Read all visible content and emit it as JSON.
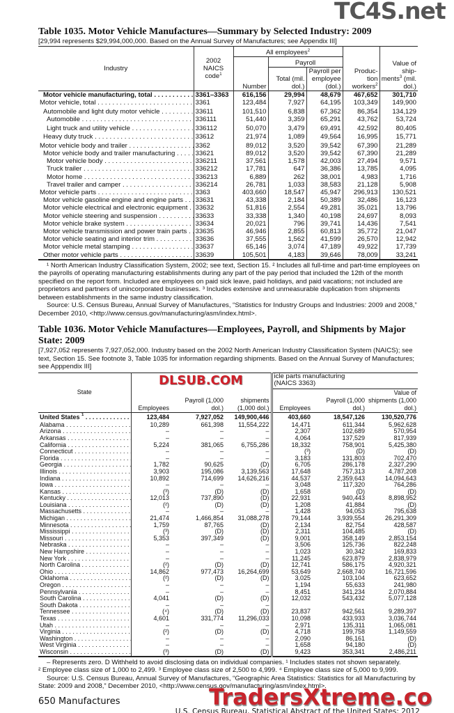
{
  "watermarks": {
    "top": "TC4S.net",
    "middle": "DLSUB.COM",
    "bottom": "TradersXtreme.co"
  },
  "t1035": {
    "title": "Table 1035. Motor Vehicle Manufactures—Summary by Selected Industry: 2009",
    "headnote": "[29,994 represents $29,994,000,000. Based on the Annual Survey of Manufactures; see Appendix III]",
    "headers": {
      "industry": "Industry",
      "naics": "2002 NAICS code",
      "all_employees": "All employees",
      "payroll": "Payroll",
      "number": "Number",
      "total": "Total (mil. dol.)",
      "per_employee": "Payroll per employee (dol.)",
      "production": "Produc- tion workers",
      "value": "Value of ship- ments",
      "value_unit": "(mil. dol.)"
    },
    "rows": [
      {
        "label": "Motor vehicle manufacturing, total",
        "indent": 1,
        "bold": true,
        "cells": [
          "3361–3363",
          "616,156",
          "29,994",
          "48,679",
          "467,652",
          "301,710"
        ]
      },
      {
        "label": "Motor vehicle, total",
        "indent": 0,
        "cells": [
          "3361",
          "123,484",
          "7,927",
          "64,195",
          "103,349",
          "149,900"
        ]
      },
      {
        "label": "Automobile and light duty motor vehicle",
        "indent": 1,
        "gap": true,
        "cells": [
          "33611",
          "101,510",
          "6,838",
          "67,362",
          "86,354",
          "134,129"
        ]
      },
      {
        "label": "Automobile",
        "indent": 2,
        "cells": [
          "336111",
          "51,440",
          "3,359",
          "65,291",
          "43,762",
          "53,724"
        ]
      },
      {
        "label": "Light truck and utility vehicle",
        "indent": 2,
        "gap": true,
        "cells": [
          "336112",
          "50,070",
          "3,479",
          "69,491",
          "42,592",
          "80,405"
        ]
      },
      {
        "label": "Heavy duty truck",
        "indent": 1,
        "cells": [
          "33612",
          "21,974",
          "1,089",
          "49,564",
          "16,995",
          "15,771"
        ]
      },
      {
        "label": "Motor vehicle body and trailer",
        "indent": 0,
        "gap": true,
        "cells": [
          "3362",
          "89,012",
          "3,520",
          "39,542",
          "67,390",
          "21,289"
        ]
      },
      {
        "label": "Motor vehicle body and trailer manufacturing",
        "indent": 1,
        "cells": [
          "33621",
          "89,012",
          "3,520",
          "39,542",
          "67,390",
          "21,289"
        ]
      },
      {
        "label": "Motor vehicle body",
        "indent": 2,
        "cells": [
          "336211",
          "37,561",
          "1,578",
          "42,003",
          "27,494",
          "9,571"
        ]
      },
      {
        "label": "Truck trailer",
        "indent": 2,
        "cells": [
          "336212",
          "17,781",
          "647",
          "36,386",
          "13,785",
          "4,095"
        ]
      },
      {
        "label": "Motor home",
        "indent": 2,
        "cells": [
          "336213",
          "6,889",
          "262",
          "38,001",
          "4,983",
          "1,716"
        ]
      },
      {
        "label": "Travel trailer and camper",
        "indent": 2,
        "cells": [
          "336214",
          "26,781",
          "1,033",
          "38,583",
          "21,128",
          "5,908"
        ]
      },
      {
        "label": "Motor vehicle parts",
        "indent": 0,
        "cells": [
          "3363",
          "403,660",
          "18,547",
          "45,947",
          "296,913",
          "130,521"
        ]
      },
      {
        "label": "Motor vehicle gasoline engine and engine parts",
        "indent": 1,
        "cells": [
          "33631",
          "43,338",
          "2,184",
          "50,389",
          "32,486",
          "16,123"
        ]
      },
      {
        "label": "Motor vehicle electrical and electronic equipment",
        "indent": 1,
        "cells": [
          "33632",
          "51,816",
          "2,554",
          "49,281",
          "35,021",
          "13,796"
        ]
      },
      {
        "label": "Motor vehicle steering and suspension",
        "indent": 1,
        "cells": [
          "33633",
          "33,338",
          "1,340",
          "40,198",
          "24,697",
          "8,093"
        ]
      },
      {
        "label": "Motor vehicle brake system",
        "indent": 1,
        "cells": [
          "33634",
          "20,021",
          "796",
          "39,741",
          "14,436",
          "7,541"
        ]
      },
      {
        "label": "Motor vehicle transmission and power train parts",
        "indent": 1,
        "cells": [
          "33635",
          "46,946",
          "2,855",
          "60,813",
          "35,772",
          "21,047"
        ]
      },
      {
        "label": "Motor vehicle seating and interior trim",
        "indent": 1,
        "cells": [
          "33636",
          "37,555",
          "1,562",
          "41,599",
          "26,570",
          "12,942"
        ]
      },
      {
        "label": "Motor vehicle metal stamping",
        "indent": 1,
        "cells": [
          "33637",
          "65,146",
          "3,074",
          "47,189",
          "49,922",
          "17,739"
        ]
      },
      {
        "label": "Other motor vehicle parts",
        "indent": 1,
        "cells": [
          "33639",
          "105,501",
          "4,183",
          "39,646",
          "78,009",
          "33,241"
        ]
      }
    ],
    "footnotes": "¹ North American Industry Classification System, 2002; see text, Section 15. ² Includes all full-time and part-time employees on the payrolls of operating manufacturing establishments during any part of the pay period that included the 12th of the month specified on the report form. Included are employees on paid sick leave, paid holidays, and paid vacations; not included are proprietors and partners of unincorporated businesses. ³ Includes extensive and unmeasurable duplication from shipments between establishments in the same industry classification.",
    "source": "Source: U.S. Census Bureau, Annual Survey of Manufactures, “Statistics for Industry Groups and Industries: 2009 and 2008,” December 2010, <http://www.census.gov/manufacturing/asm/index.html>."
  },
  "t1036": {
    "title": "Table 1036. Motor Vehicle Manufactures—Employees, Payroll, and Shipments by Major State: 2009",
    "headnote": "[7,927,052 represents 7,927,052,000. Industry based on the 2002 North American Industry Classification System (NAICS); see text, Section 15. See footnote 3, Table 1035 for information regarding shipments. Based on the Annual Survey of Manufactures; see Apppendix III]",
    "headers": {
      "state": "State",
      "group2_a": "icle parts manufacturing",
      "group2_b": "(NAICS 3363)",
      "employees": "Employees",
      "payroll": "Payroll (1,000 dol.)",
      "value": "Value of shipments (1,000 dol.)",
      "value_partial": "shipments (1,000 dol.)"
    },
    "us_row": {
      "label": "United States",
      "sup": "1",
      "cells": [
        "123,484",
        "7,927,052",
        "149,900,446",
        "403,660",
        "18,547,126",
        "130,520,776"
      ]
    },
    "rows": [
      [
        "Alabama",
        "10,289",
        "661,398",
        "11,554,222",
        "14,471",
        "611,344",
        "5,962,628"
      ],
      [
        "Arizona",
        "–",
        "–",
        "–",
        "2,307",
        "102,689",
        "570,954"
      ],
      [
        "Arkansas",
        "–",
        "–",
        "–",
        "4,064",
        "137,529",
        "817,939"
      ],
      [
        "California",
        "5,224",
        "381,065",
        "6,755,286",
        "18,332",
        "758,901",
        "5,425,380"
      ],
      [
        "Connecticut",
        "–",
        "–",
        "–",
        "(³)",
        "(D)",
        "(D)"
      ],
      [
        "Florida",
        "–",
        "–",
        "–",
        "3,183",
        "131,803",
        "702,470"
      ],
      [
        "Georgia",
        "1,782",
        "90,625",
        "(D)",
        "6,705",
        "286,178",
        "2,327,290"
      ],
      [
        "Illinois",
        "3,903",
        "195,086",
        "3,139,563",
        "17,648",
        "757,313",
        "4,787,208"
      ],
      [
        "Indiana",
        "10,892",
        "714,699",
        "14,626,216",
        "44,537",
        "2,359,643",
        "14,094,643"
      ],
      [
        "Iowa",
        "–",
        "–",
        "–",
        "3,048",
        "117,320",
        "764,286"
      ],
      [
        "Kansas",
        "(³)",
        "(D)",
        "(D)",
        "1,658",
        "(D)",
        "(D)"
      ],
      [
        "Kentucky",
        "12,013",
        "737,890",
        "(D)",
        "22,931",
        "940,443",
        "8,898,952"
      ],
      [
        "Louisiana",
        "(²)",
        "(D)",
        "(D)",
        "1,208",
        "41,884",
        "(D)"
      ],
      [
        "Massachusetts",
        "–",
        "–",
        "–",
        "1,428",
        "94,053",
        "795,638"
      ],
      [
        "Michigan",
        "21,474",
        "1,466,854",
        "31,088,278",
        "79,144",
        "3,939,554",
        "26,291,309"
      ],
      [
        "Minnesota",
        "1,759",
        "87,765",
        "(D)",
        "2,134",
        "82,754",
        "428,587"
      ],
      [
        "Mississippi",
        "(³)",
        "(D)",
        "(D)",
        "2,311",
        "104,485",
        "(D)"
      ],
      [
        "Missouri",
        "5,353",
        "397,349",
        "(D)",
        "9,001",
        "358,149",
        "2,853,154"
      ],
      [
        "Nebraska",
        "–",
        "–",
        "–",
        "3,506",
        "125,736",
        "822,248"
      ],
      [
        "New Hampshire",
        "–",
        "–",
        "–",
        "1,023",
        "30,342",
        "169,833"
      ],
      [
        "New York",
        "–",
        "–",
        "–",
        "11,245",
        "623,879",
        "2,838,979"
      ],
      [
        "North Carolina",
        "(²)",
        "(D)",
        "(D)",
        "12,741",
        "586,175",
        "4,920,321"
      ],
      [
        "Ohio",
        "14,862",
        "977,473",
        "16,264,699",
        "53,649",
        "2,668,740",
        "16,721,596"
      ],
      [
        "Oklahoma",
        "(²)",
        "(D)",
        "(D)",
        "3,025",
        "103,104",
        "623,652"
      ],
      [
        "Oregon",
        "–",
        "–",
        "–",
        "1,194",
        "55,633",
        "241,980"
      ],
      [
        "Pennsylvania",
        "–",
        "–",
        "–",
        "8,451",
        "341,234",
        "2,070,884"
      ],
      [
        "South Carolina",
        "4,041",
        "(D)",
        "(D)",
        "12,032",
        "543,432",
        "5,077,128"
      ],
      [
        "South Dakota",
        "–",
        "–",
        "–",
        "",
        "",
        ""
      ],
      [
        "Tennessee",
        "(⁴)",
        "(D)",
        "(D)",
        "23,837",
        "942,561",
        "9,289,397"
      ],
      [
        "Texas",
        "4,601",
        "331,774",
        "11,296,033",
        "10,098",
        "433,933",
        "3,036,744"
      ],
      [
        "Utah",
        "–",
        "–",
        "–",
        "2,971",
        "135,311",
        "1,065,081"
      ],
      [
        "Virginia",
        "(²)",
        "(D)",
        "(D)",
        "4,718",
        "199,758",
        "1,149,559"
      ],
      [
        "Washington",
        "–",
        "–",
        "–",
        "2,090",
        "86,161",
        "(D)"
      ],
      [
        "West Virginia",
        "–",
        "–",
        "–",
        "1,658",
        "94,180",
        "(D)"
      ],
      [
        "Wisconsin",
        "(³)",
        "(D)",
        "(D)",
        "9,423",
        "353,341",
        "2,486,211"
      ]
    ],
    "footnote1": "– Represents zero. D Withheld to avoid disclosing data on individual companies. ¹ Includes states not shown separately.",
    "footnote2": "² Employee class size of 1,000 to 2,499. ³ Employee class size of 2,500 to 4,999. ⁴ Employee class size of 5,000 to 9,999.",
    "source": "Source: U.S. Census Bureau, Annual Survey of Manufactures, “Geographic Area Statistics: Statistics for all Manufacturing by State: 2009 and 2008,” December 2010, <http://www.census.gov/manufacturing/asm/index.html>."
  },
  "footer": {
    "page": "650  Manufactures",
    "publication": "U.S. Census Bureau, Statistical Abstract of the United States: 2012"
  }
}
